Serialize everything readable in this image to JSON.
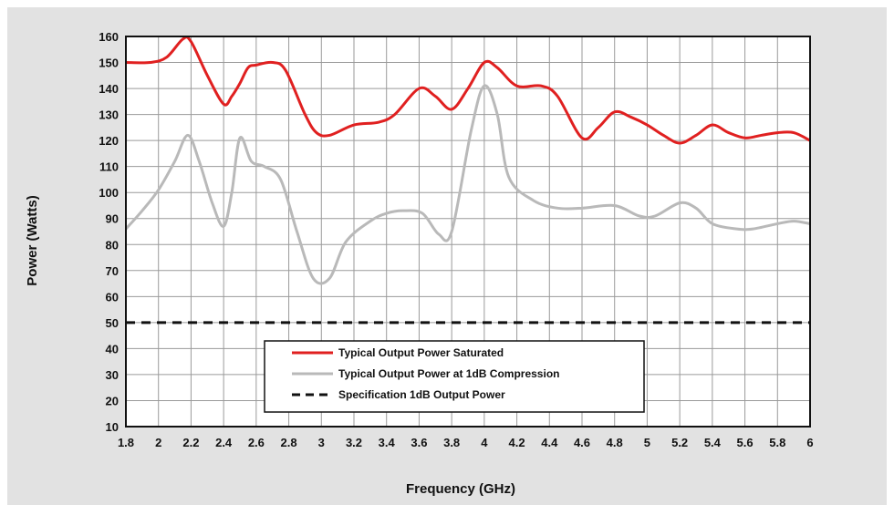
{
  "chart_data": {
    "type": "line",
    "xlabel": "Frequency (GHz)",
    "ylabel": "Power (Watts)",
    "xlim": [
      1.8,
      6
    ],
    "ylim": [
      10,
      160
    ],
    "xticks": [
      "1.8",
      "2",
      "2.2",
      "2.4",
      "2.6",
      "2.8",
      "3",
      "3.2",
      "3.4",
      "3.6",
      "3.8",
      "4",
      "4.2",
      "4.4",
      "4.6",
      "4.8",
      "5",
      "5.2",
      "5.4",
      "5.6",
      "5.8",
      "6"
    ],
    "yticks": [
      "10",
      "20",
      "30",
      "40",
      "50",
      "60",
      "70",
      "80",
      "90",
      "100",
      "110",
      "120",
      "130",
      "140",
      "150",
      "160"
    ],
    "grid": true,
    "legend_position": "bottom-center",
    "series": [
      {
        "name": "Typical Output Power Saturated",
        "color": "#e02020",
        "style": "solid",
        "points": [
          [
            1.8,
            150
          ],
          [
            1.95,
            150
          ],
          [
            2.05,
            152
          ],
          [
            2.15,
            159
          ],
          [
            2.2,
            158
          ],
          [
            2.3,
            145
          ],
          [
            2.4,
            134
          ],
          [
            2.45,
            137
          ],
          [
            2.5,
            142
          ],
          [
            2.55,
            148
          ],
          [
            2.6,
            149
          ],
          [
            2.7,
            150
          ],
          [
            2.78,
            147
          ],
          [
            2.9,
            130
          ],
          [
            2.97,
            123
          ],
          [
            3.05,
            122
          ],
          [
            3.2,
            126
          ],
          [
            3.35,
            127
          ],
          [
            3.45,
            130
          ],
          [
            3.6,
            140
          ],
          [
            3.7,
            137
          ],
          [
            3.8,
            132
          ],
          [
            3.9,
            140
          ],
          [
            4.0,
            150
          ],
          [
            4.08,
            148
          ],
          [
            4.2,
            141
          ],
          [
            4.35,
            141
          ],
          [
            4.45,
            137
          ],
          [
            4.6,
            121
          ],
          [
            4.7,
            125
          ],
          [
            4.8,
            131
          ],
          [
            4.9,
            129
          ],
          [
            5.0,
            126
          ],
          [
            5.1,
            122
          ],
          [
            5.2,
            119
          ],
          [
            5.3,
            122
          ],
          [
            5.4,
            126
          ],
          [
            5.5,
            123
          ],
          [
            5.6,
            121
          ],
          [
            5.7,
            122
          ],
          [
            5.8,
            123
          ],
          [
            5.9,
            123
          ],
          [
            6.0,
            120
          ]
        ]
      },
      {
        "name": "Typical Output Power at 1dB Compression",
        "color": "#b9b9b9",
        "style": "solid",
        "points": [
          [
            1.8,
            86
          ],
          [
            1.9,
            93
          ],
          [
            2.0,
            101
          ],
          [
            2.1,
            112
          ],
          [
            2.18,
            122
          ],
          [
            2.25,
            112
          ],
          [
            2.33,
            96
          ],
          [
            2.4,
            87
          ],
          [
            2.45,
            100
          ],
          [
            2.5,
            121
          ],
          [
            2.57,
            112
          ],
          [
            2.65,
            110
          ],
          [
            2.75,
            105
          ],
          [
            2.85,
            85
          ],
          [
            2.95,
            67
          ],
          [
            3.05,
            67
          ],
          [
            3.15,
            81
          ],
          [
            3.3,
            89
          ],
          [
            3.4,
            92
          ],
          [
            3.5,
            93
          ],
          [
            3.62,
            92
          ],
          [
            3.72,
            84
          ],
          [
            3.8,
            85
          ],
          [
            3.92,
            124
          ],
          [
            4.0,
            141
          ],
          [
            4.08,
            130
          ],
          [
            4.15,
            106
          ],
          [
            4.3,
            97
          ],
          [
            4.45,
            94
          ],
          [
            4.6,
            94
          ],
          [
            4.8,
            95
          ],
          [
            4.95,
            91
          ],
          [
            5.05,
            91
          ],
          [
            5.2,
            96
          ],
          [
            5.3,
            94
          ],
          [
            5.4,
            88
          ],
          [
            5.55,
            86
          ],
          [
            5.65,
            86
          ],
          [
            5.8,
            88
          ],
          [
            5.9,
            89
          ],
          [
            6.0,
            88
          ]
        ]
      },
      {
        "name": "Specification 1dB Output Power",
        "color": "#111111",
        "style": "dashed",
        "points": [
          [
            1.8,
            50
          ],
          [
            6.0,
            50
          ]
        ]
      }
    ]
  }
}
